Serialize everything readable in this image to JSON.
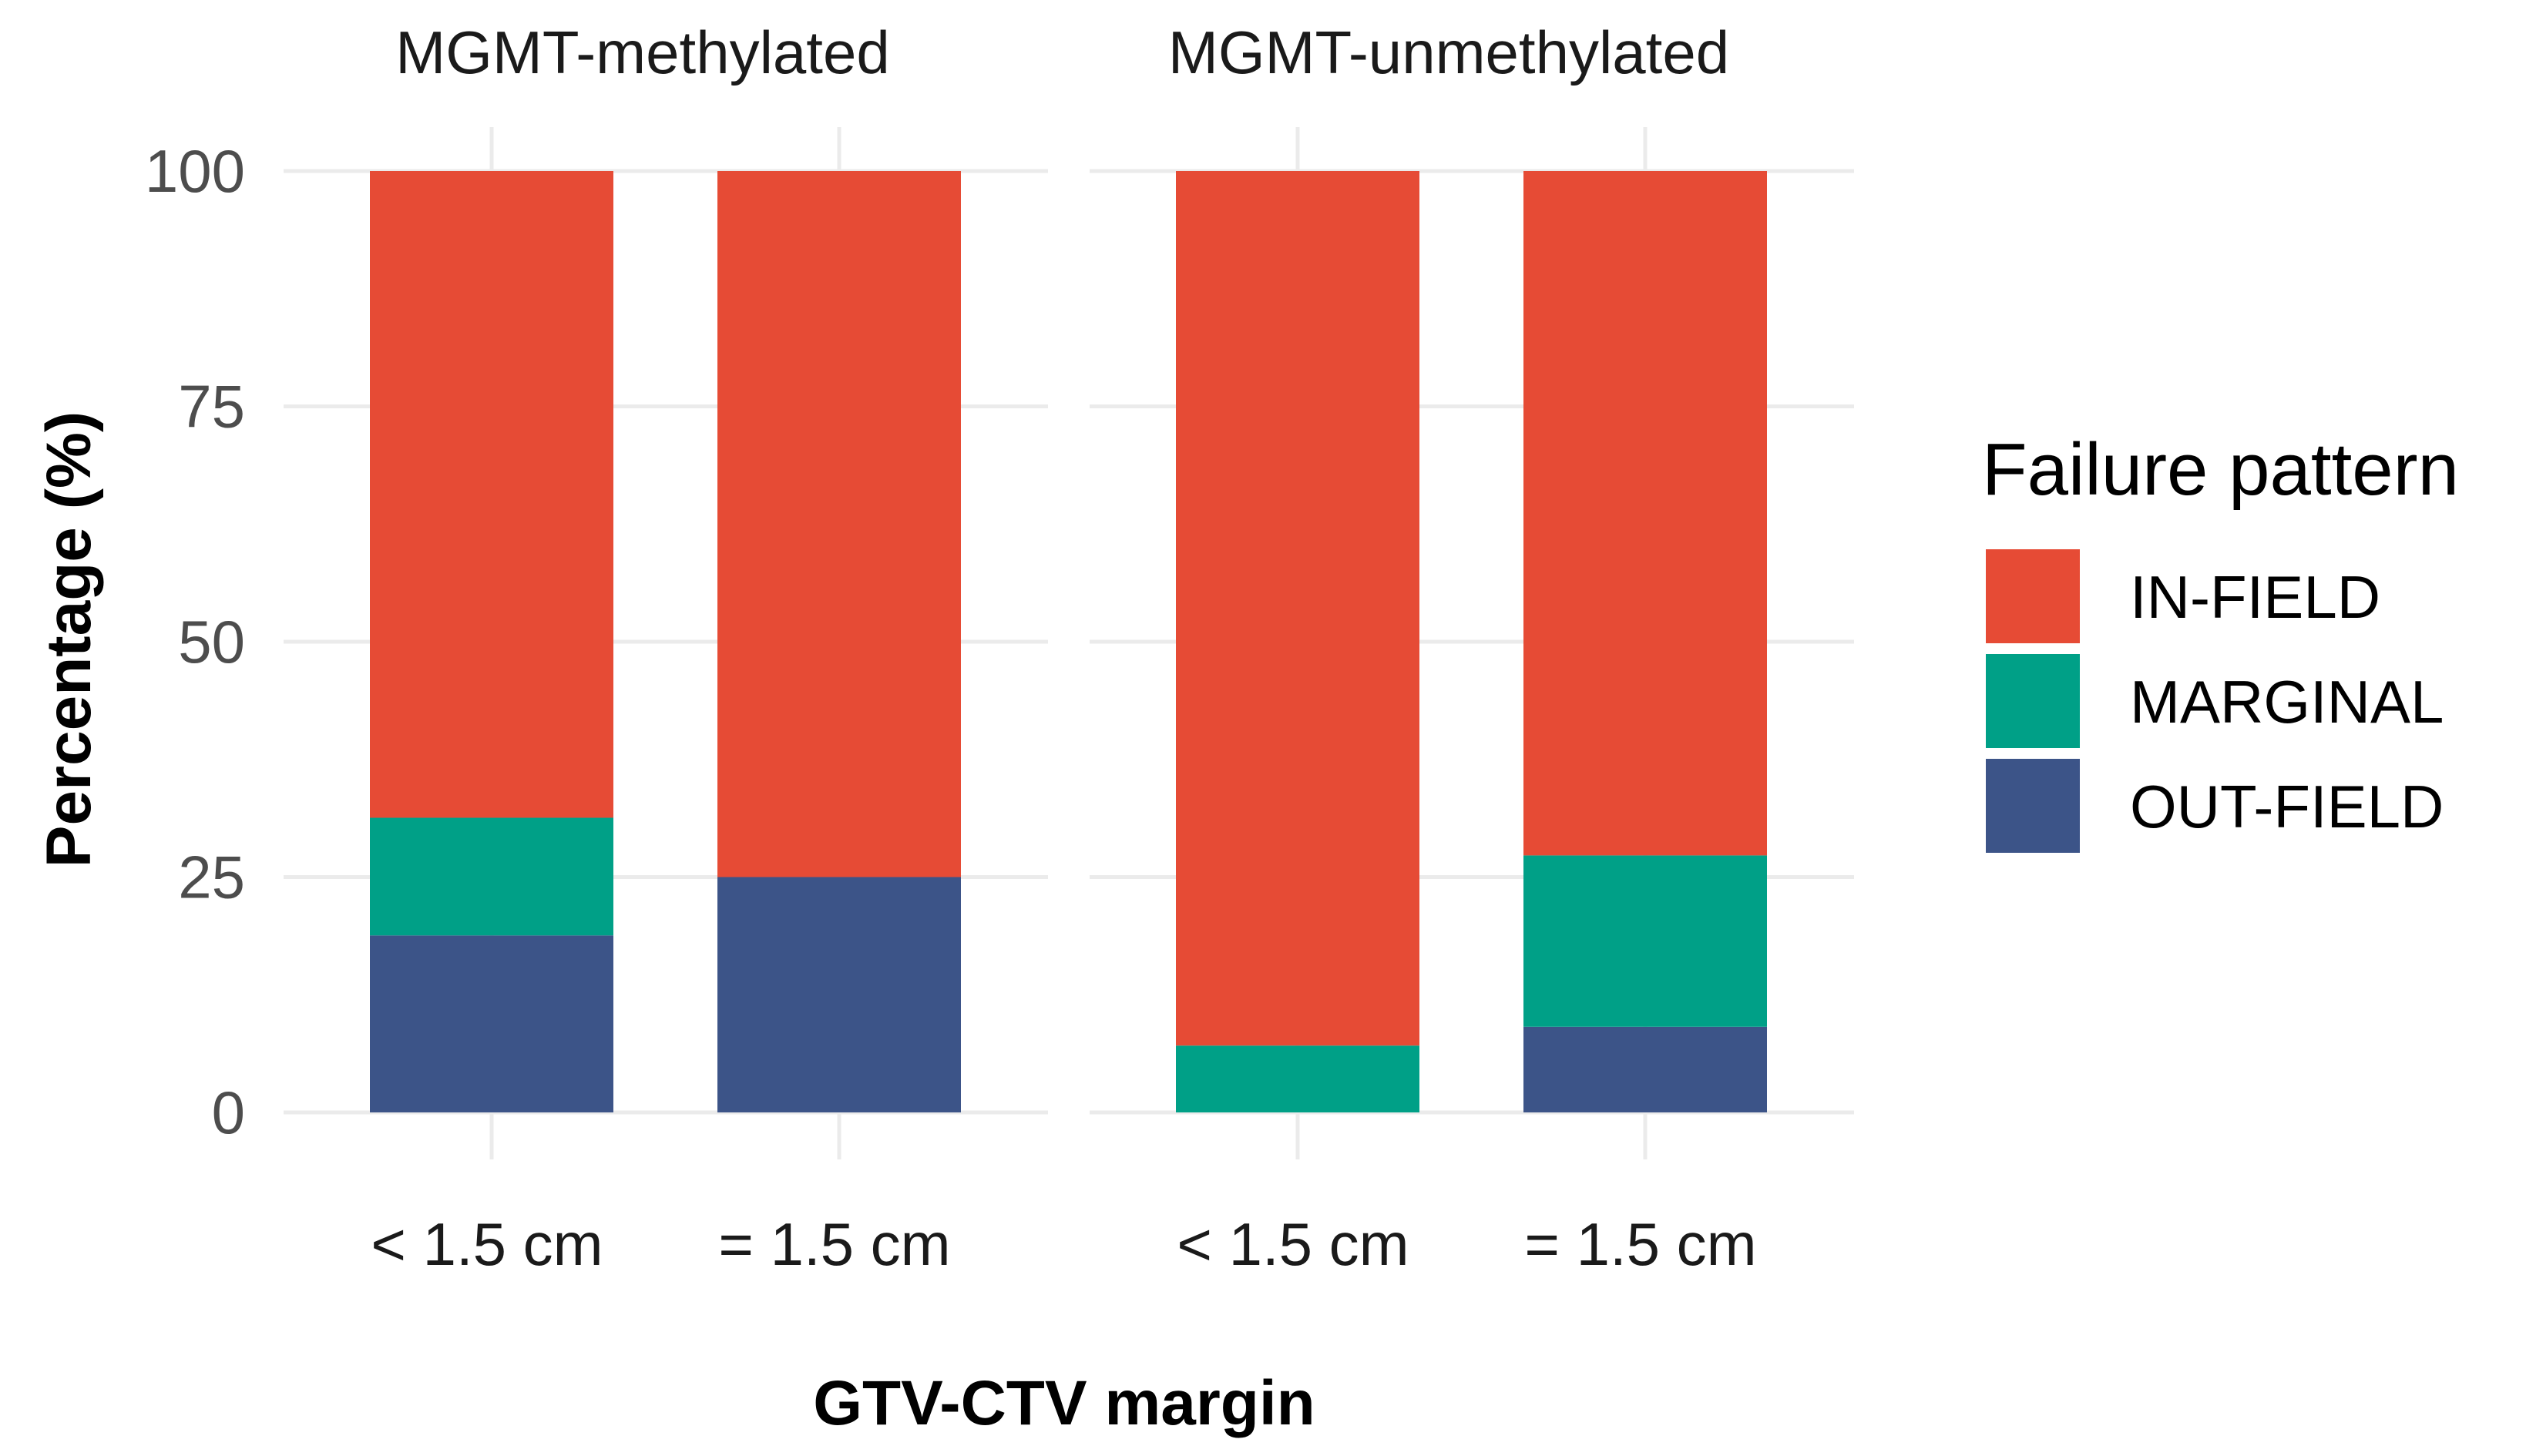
{
  "chart_data": {
    "type": "bar",
    "stacked": true,
    "xlabel": "GTV-CTV margin",
    "ylabel": "Percentage (%)",
    "ylim": [
      0,
      100
    ],
    "yticks": [
      "0",
      "25",
      "50",
      "75",
      "100"
    ],
    "categories": [
      "< 1.5 cm",
      "= 1.5 cm"
    ],
    "legend": {
      "title": "Failure pattern",
      "position": "right",
      "entries": [
        "IN-FIELD",
        "MARGINAL",
        "OUT-FIELD"
      ]
    },
    "colors": {
      "IN-FIELD": "#E64B35",
      "MARGINAL": "#00A087",
      "OUT-FIELD": "#3C5488"
    },
    "facets": [
      {
        "title": "MGMT-methylated",
        "series": [
          {
            "name": "OUT-FIELD",
            "values": [
              18.8,
              25.0
            ]
          },
          {
            "name": "MARGINAL",
            "values": [
              12.5,
              0.0
            ]
          },
          {
            "name": "IN-FIELD",
            "values": [
              68.7,
              75.0
            ]
          }
        ]
      },
      {
        "title": "MGMT-unmethylated",
        "series": [
          {
            "name": "OUT-FIELD",
            "values": [
              0.0,
              9.1
            ]
          },
          {
            "name": "MARGINAL",
            "values": [
              7.1,
              18.2
            ]
          },
          {
            "name": "IN-FIELD",
            "values": [
              92.9,
              72.7
            ]
          }
        ]
      }
    ]
  }
}
